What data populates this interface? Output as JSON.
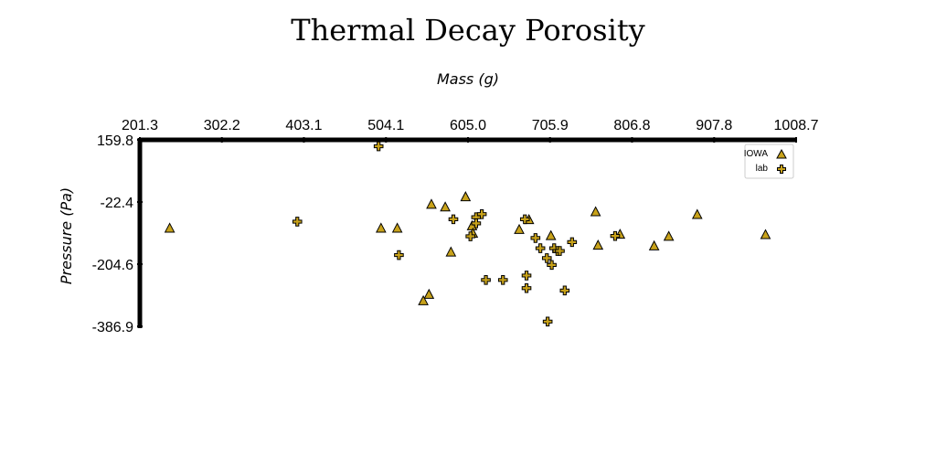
{
  "chart_data": {
    "type": "scatter",
    "title": "Thermal Decay Porosity",
    "xlabel": "Mass (g)",
    "ylabel": "Pressure (Pa)",
    "xlim": [
      201.3,
      1008.7
    ],
    "ylim": [
      -386.9,
      159.8
    ],
    "x_ticks": [
      "201.3",
      "302.2",
      "403.1",
      "504.1",
      "605.0",
      "705.9",
      "806.8",
      "907.8",
      "1008.7"
    ],
    "y_ticks": [
      "159.8",
      "-22.4",
      "-204.6",
      "-386.9"
    ],
    "grid": false,
    "legend_position": "top-right",
    "marker_fill": "#c8a21a",
    "marker_stroke": "#000000",
    "series": [
      {
        "name": "IOWA",
        "marker": "triangle",
        "points": [
          [
            238,
            -100
          ],
          [
            498,
            -100
          ],
          [
            518,
            -100
          ],
          [
            560,
            -30
          ],
          [
            577,
            -38
          ],
          [
            584,
            -170
          ],
          [
            602,
            -8
          ],
          [
            610,
            -93
          ],
          [
            611,
            -115
          ],
          [
            668,
            -104
          ],
          [
            680,
            -75
          ],
          [
            707,
            -122
          ],
          [
            762,
            -52
          ],
          [
            765,
            -150
          ],
          [
            792,
            -118
          ],
          [
            834,
            -152
          ],
          [
            852,
            -124
          ],
          [
            887,
            -60
          ],
          [
            971,
            -119
          ],
          [
            557,
            -294
          ],
          [
            550,
            -313
          ]
        ]
      },
      {
        "name": "lab",
        "marker": "plus",
        "points": [
          [
            495,
            141
          ],
          [
            395,
            -80
          ],
          [
            520,
            -178
          ],
          [
            587,
            -73
          ],
          [
            608,
            -123
          ],
          [
            615,
            -67
          ],
          [
            615,
            -85
          ],
          [
            622,
            -58
          ],
          [
            627,
            -251
          ],
          [
            648,
            -251
          ],
          [
            675,
            -73
          ],
          [
            677,
            -238
          ],
          [
            677,
            -275
          ],
          [
            688,
            -128
          ],
          [
            694,
            -158
          ],
          [
            702,
            -187
          ],
          [
            703,
            -373
          ],
          [
            708,
            -207
          ],
          [
            711,
            -158
          ],
          [
            715,
            -166
          ],
          [
            718,
            -166
          ],
          [
            724,
            -282
          ],
          [
            733,
            -140
          ],
          [
            786,
            -122
          ]
        ]
      }
    ]
  }
}
